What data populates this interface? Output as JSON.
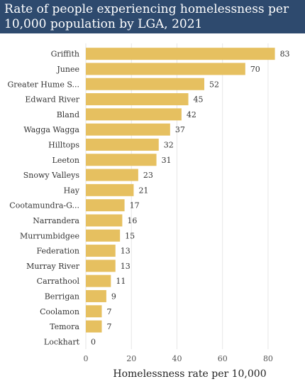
{
  "header": {
    "title_line1": "Rate of people experiencing homelessness per",
    "title_line2": "10,000 population by LGA, 2021"
  },
  "colors": {
    "bar": "#e6c060",
    "header_bg": "#2e4a6e",
    "grid": "#e6e6e6"
  },
  "chart_data": {
    "type": "bar",
    "orientation": "horizontal",
    "title": "Rate of people experiencing homelessness per 10,000 population by LGA, 2021",
    "xlabel": "Homelessness rate per 10,000",
    "ylabel": "",
    "xlim": [
      0,
      85
    ],
    "xticks": [
      0,
      20,
      40,
      60,
      80
    ],
    "grid": "vertical",
    "categories": [
      "Griffith",
      "Junee",
      "Greater Hume S...",
      "Edward River",
      "Bland",
      "Wagga Wagga",
      "Hilltops",
      "Leeton",
      "Snowy Valleys",
      "Hay",
      "Cootamundra-G...",
      "Narrandera",
      "Murrumbidgee",
      "Federation",
      "Murray River",
      "Carrathool",
      "Berrigan",
      "Coolamon",
      "Temora",
      "Lockhart"
    ],
    "values": [
      83,
      70,
      52,
      45,
      42,
      37,
      32,
      31,
      23,
      21,
      17,
      16,
      15,
      13,
      13,
      11,
      9,
      7,
      7,
      0
    ]
  }
}
